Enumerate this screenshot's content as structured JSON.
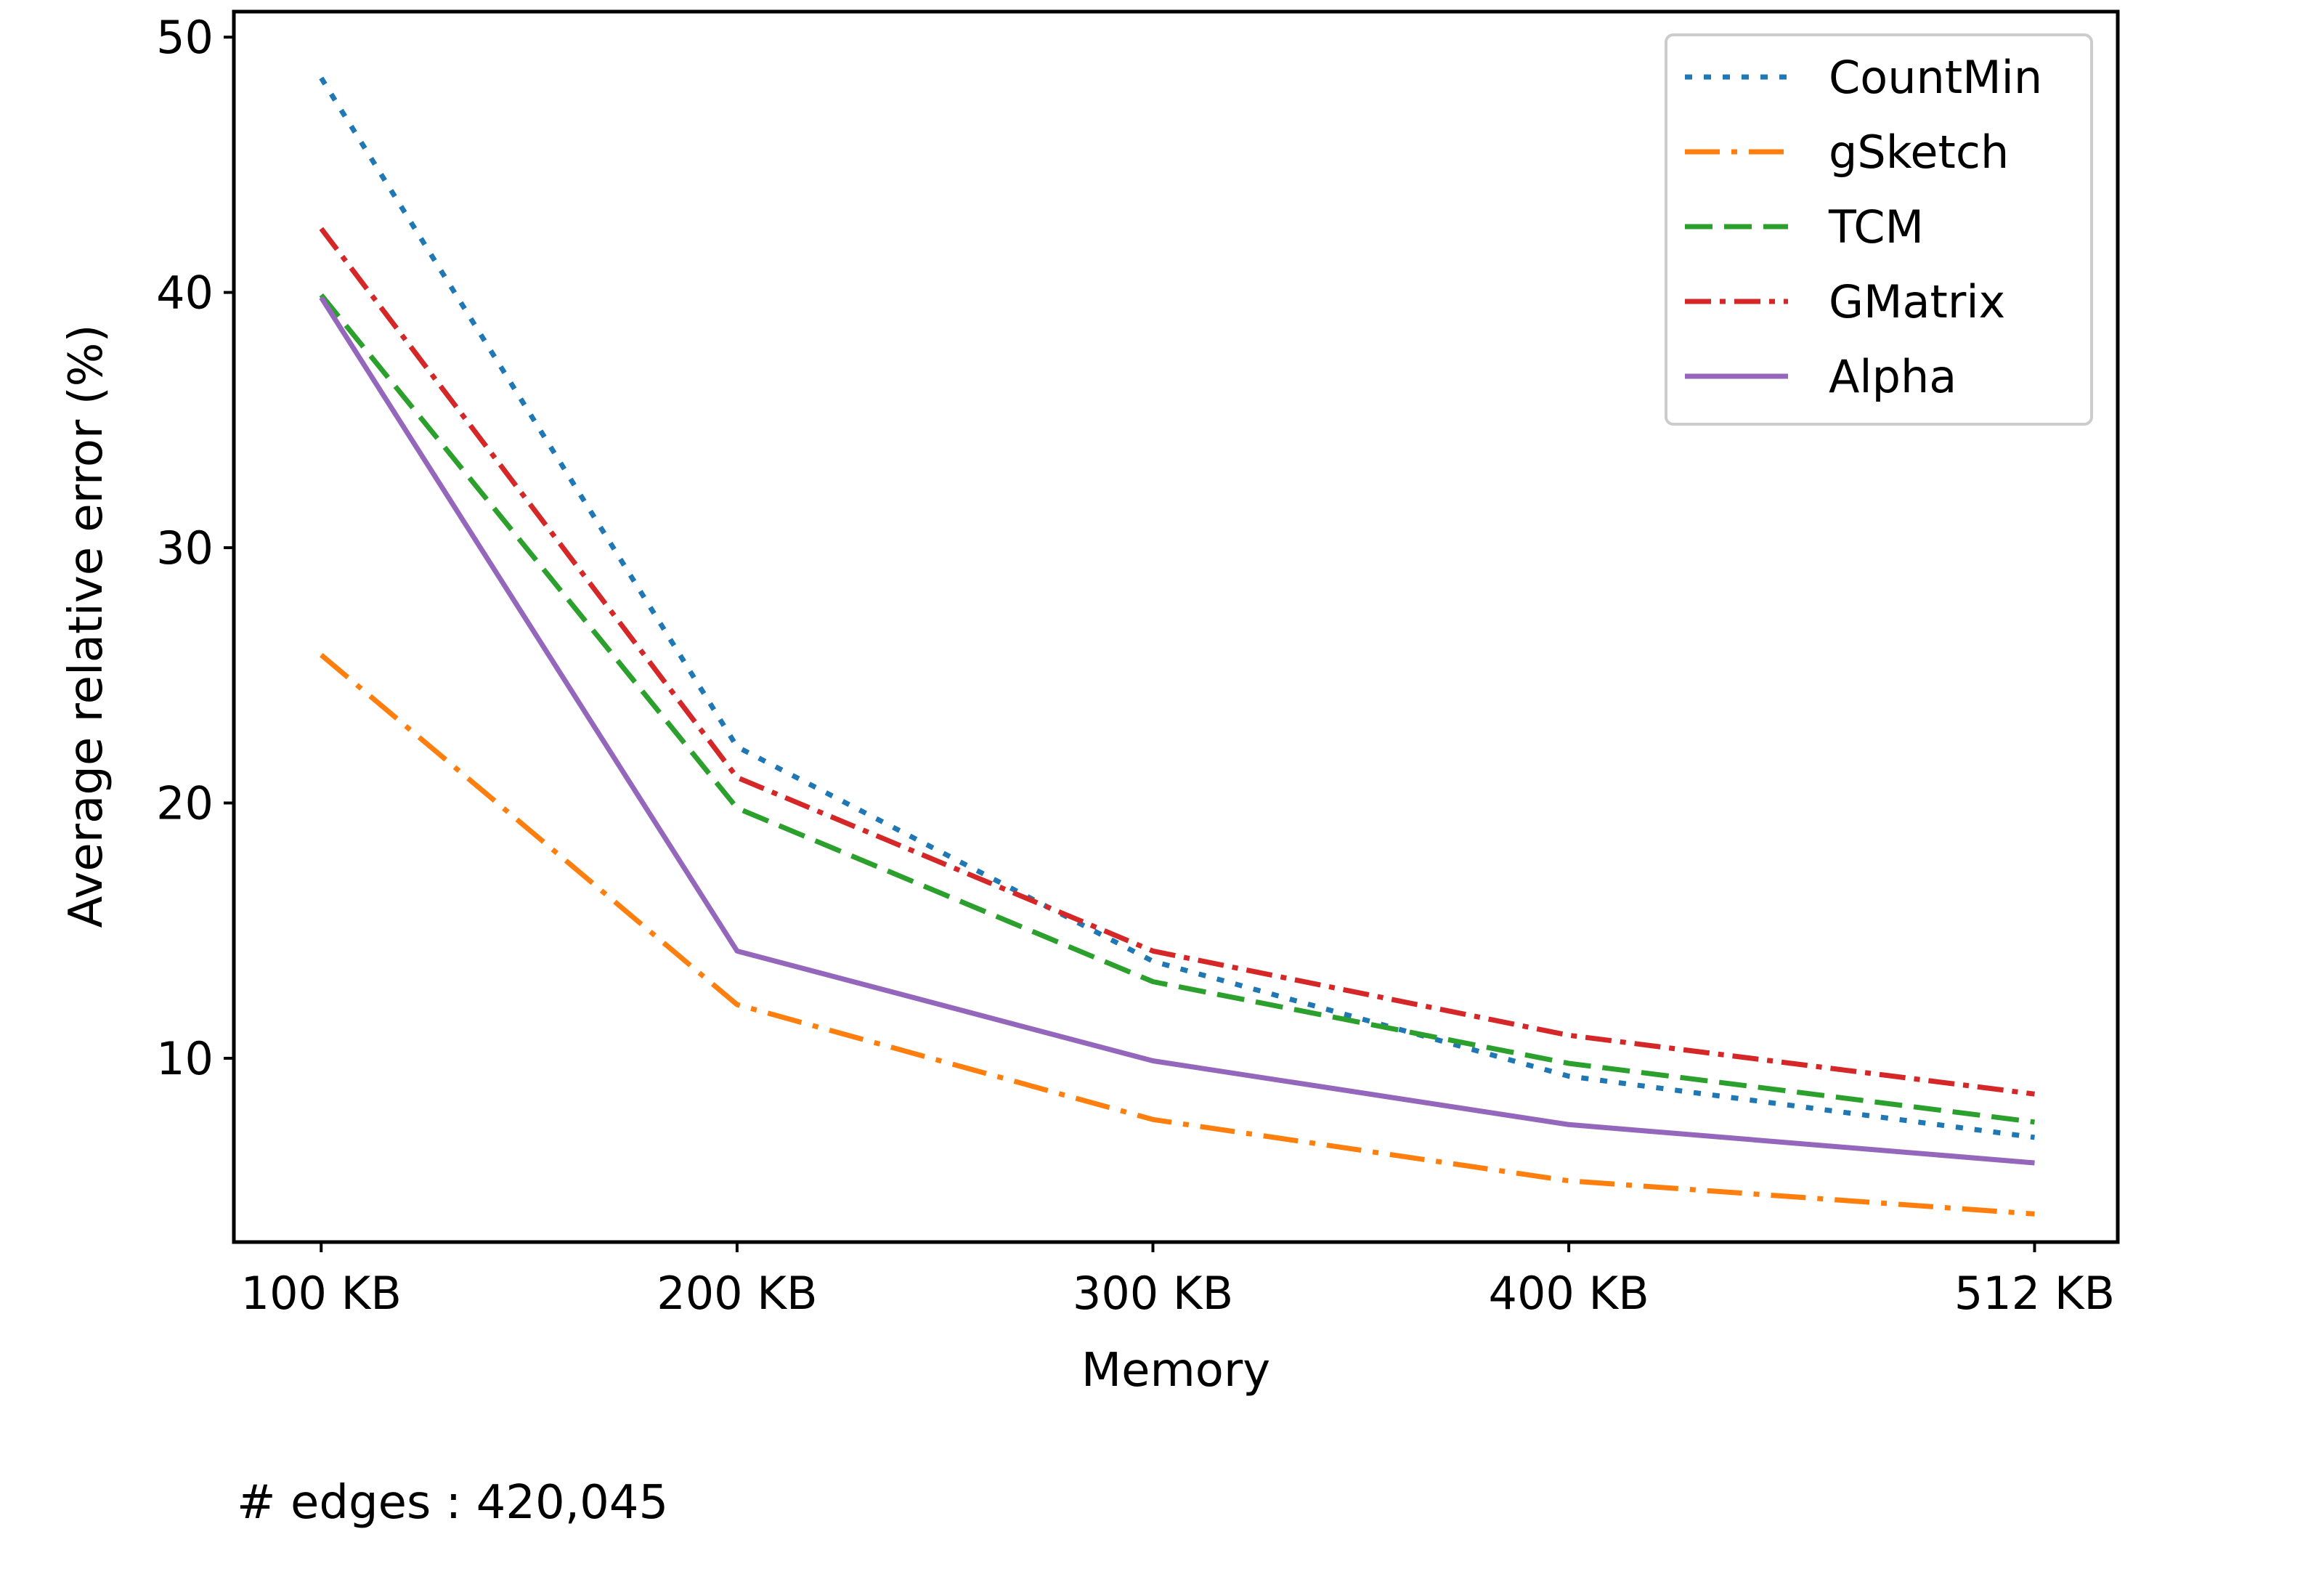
{
  "chart_data": {
    "type": "line",
    "categories": [
      "100 KB",
      "200 KB",
      "300 KB",
      "400 KB",
      "512 KB"
    ],
    "x": [
      100,
      200,
      300,
      400,
      512
    ],
    "xlabel": "Memory",
    "ylabel": "Average relative error (%)",
    "yticks": [
      10,
      20,
      30,
      40,
      50
    ],
    "ylim": [
      2.8,
      51
    ],
    "xlim": [
      79,
      532
    ],
    "grid": false,
    "legend_position": "top-right",
    "series": [
      {
        "name": "CountMin",
        "color": "#1f77b4",
        "dash": "dotted",
        "values": [
          48.4,
          22.2,
          13.8,
          9.3,
          6.9
        ]
      },
      {
        "name": "gSketch",
        "color": "#ff7f0e",
        "dash": "dashdot",
        "values": [
          25.8,
          12.1,
          7.6,
          5.2,
          3.9
        ]
      },
      {
        "name": "TCM",
        "color": "#2ca02c",
        "dash": "dashed",
        "values": [
          39.9,
          19.8,
          13.0,
          9.8,
          7.5
        ]
      },
      {
        "name": "GMatrix",
        "color": "#d62728",
        "dash": "densedashdot",
        "values": [
          42.5,
          21.0,
          14.2,
          10.9,
          8.6
        ]
      },
      {
        "name": "Alpha",
        "color": "#9467bd",
        "dash": "solid",
        "values": [
          39.8,
          14.2,
          9.9,
          7.4,
          5.9
        ]
      }
    ]
  },
  "note": "# edges : 420,045"
}
